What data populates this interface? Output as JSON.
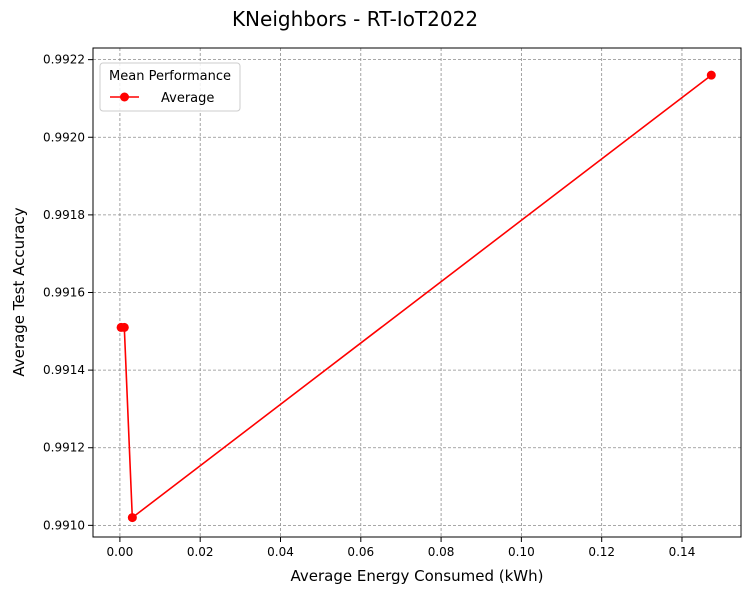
{
  "chart_data": {
    "type": "line",
    "title": "KNeighbors - RT-IoT2022",
    "xlabel": "Average Energy Consumed (kWh)",
    "ylabel": "Average Test Accuracy",
    "xlim": [
      -0.0067,
      0.1547
    ],
    "ylim": [
      0.99097,
      0.99223
    ],
    "xticks": [
      "0.00",
      "0.02",
      "0.04",
      "0.06",
      "0.08",
      "0.10",
      "0.12",
      "0.14"
    ],
    "xtick_values": [
      0.0,
      0.02,
      0.04,
      0.06,
      0.08,
      0.1,
      0.12,
      0.14
    ],
    "yticks": [
      "0.9910",
      "0.9912",
      "0.9914",
      "0.9916",
      "0.9918",
      "0.9920",
      "0.9922"
    ],
    "ytick_values": [
      0.991,
      0.9912,
      0.9914,
      0.9916,
      0.9918,
      0.992,
      0.9922
    ],
    "grid": true,
    "legend_title": "Mean Performance",
    "legend_position": "top-left",
    "series": [
      {
        "name": "Average",
        "color": "#ff0000",
        "marker": "circle",
        "x": [
          0.0003,
          0.0011,
          0.0031,
          0.1473
        ],
        "y": [
          0.99151,
          0.99151,
          0.99102,
          0.99216
        ]
      }
    ]
  }
}
